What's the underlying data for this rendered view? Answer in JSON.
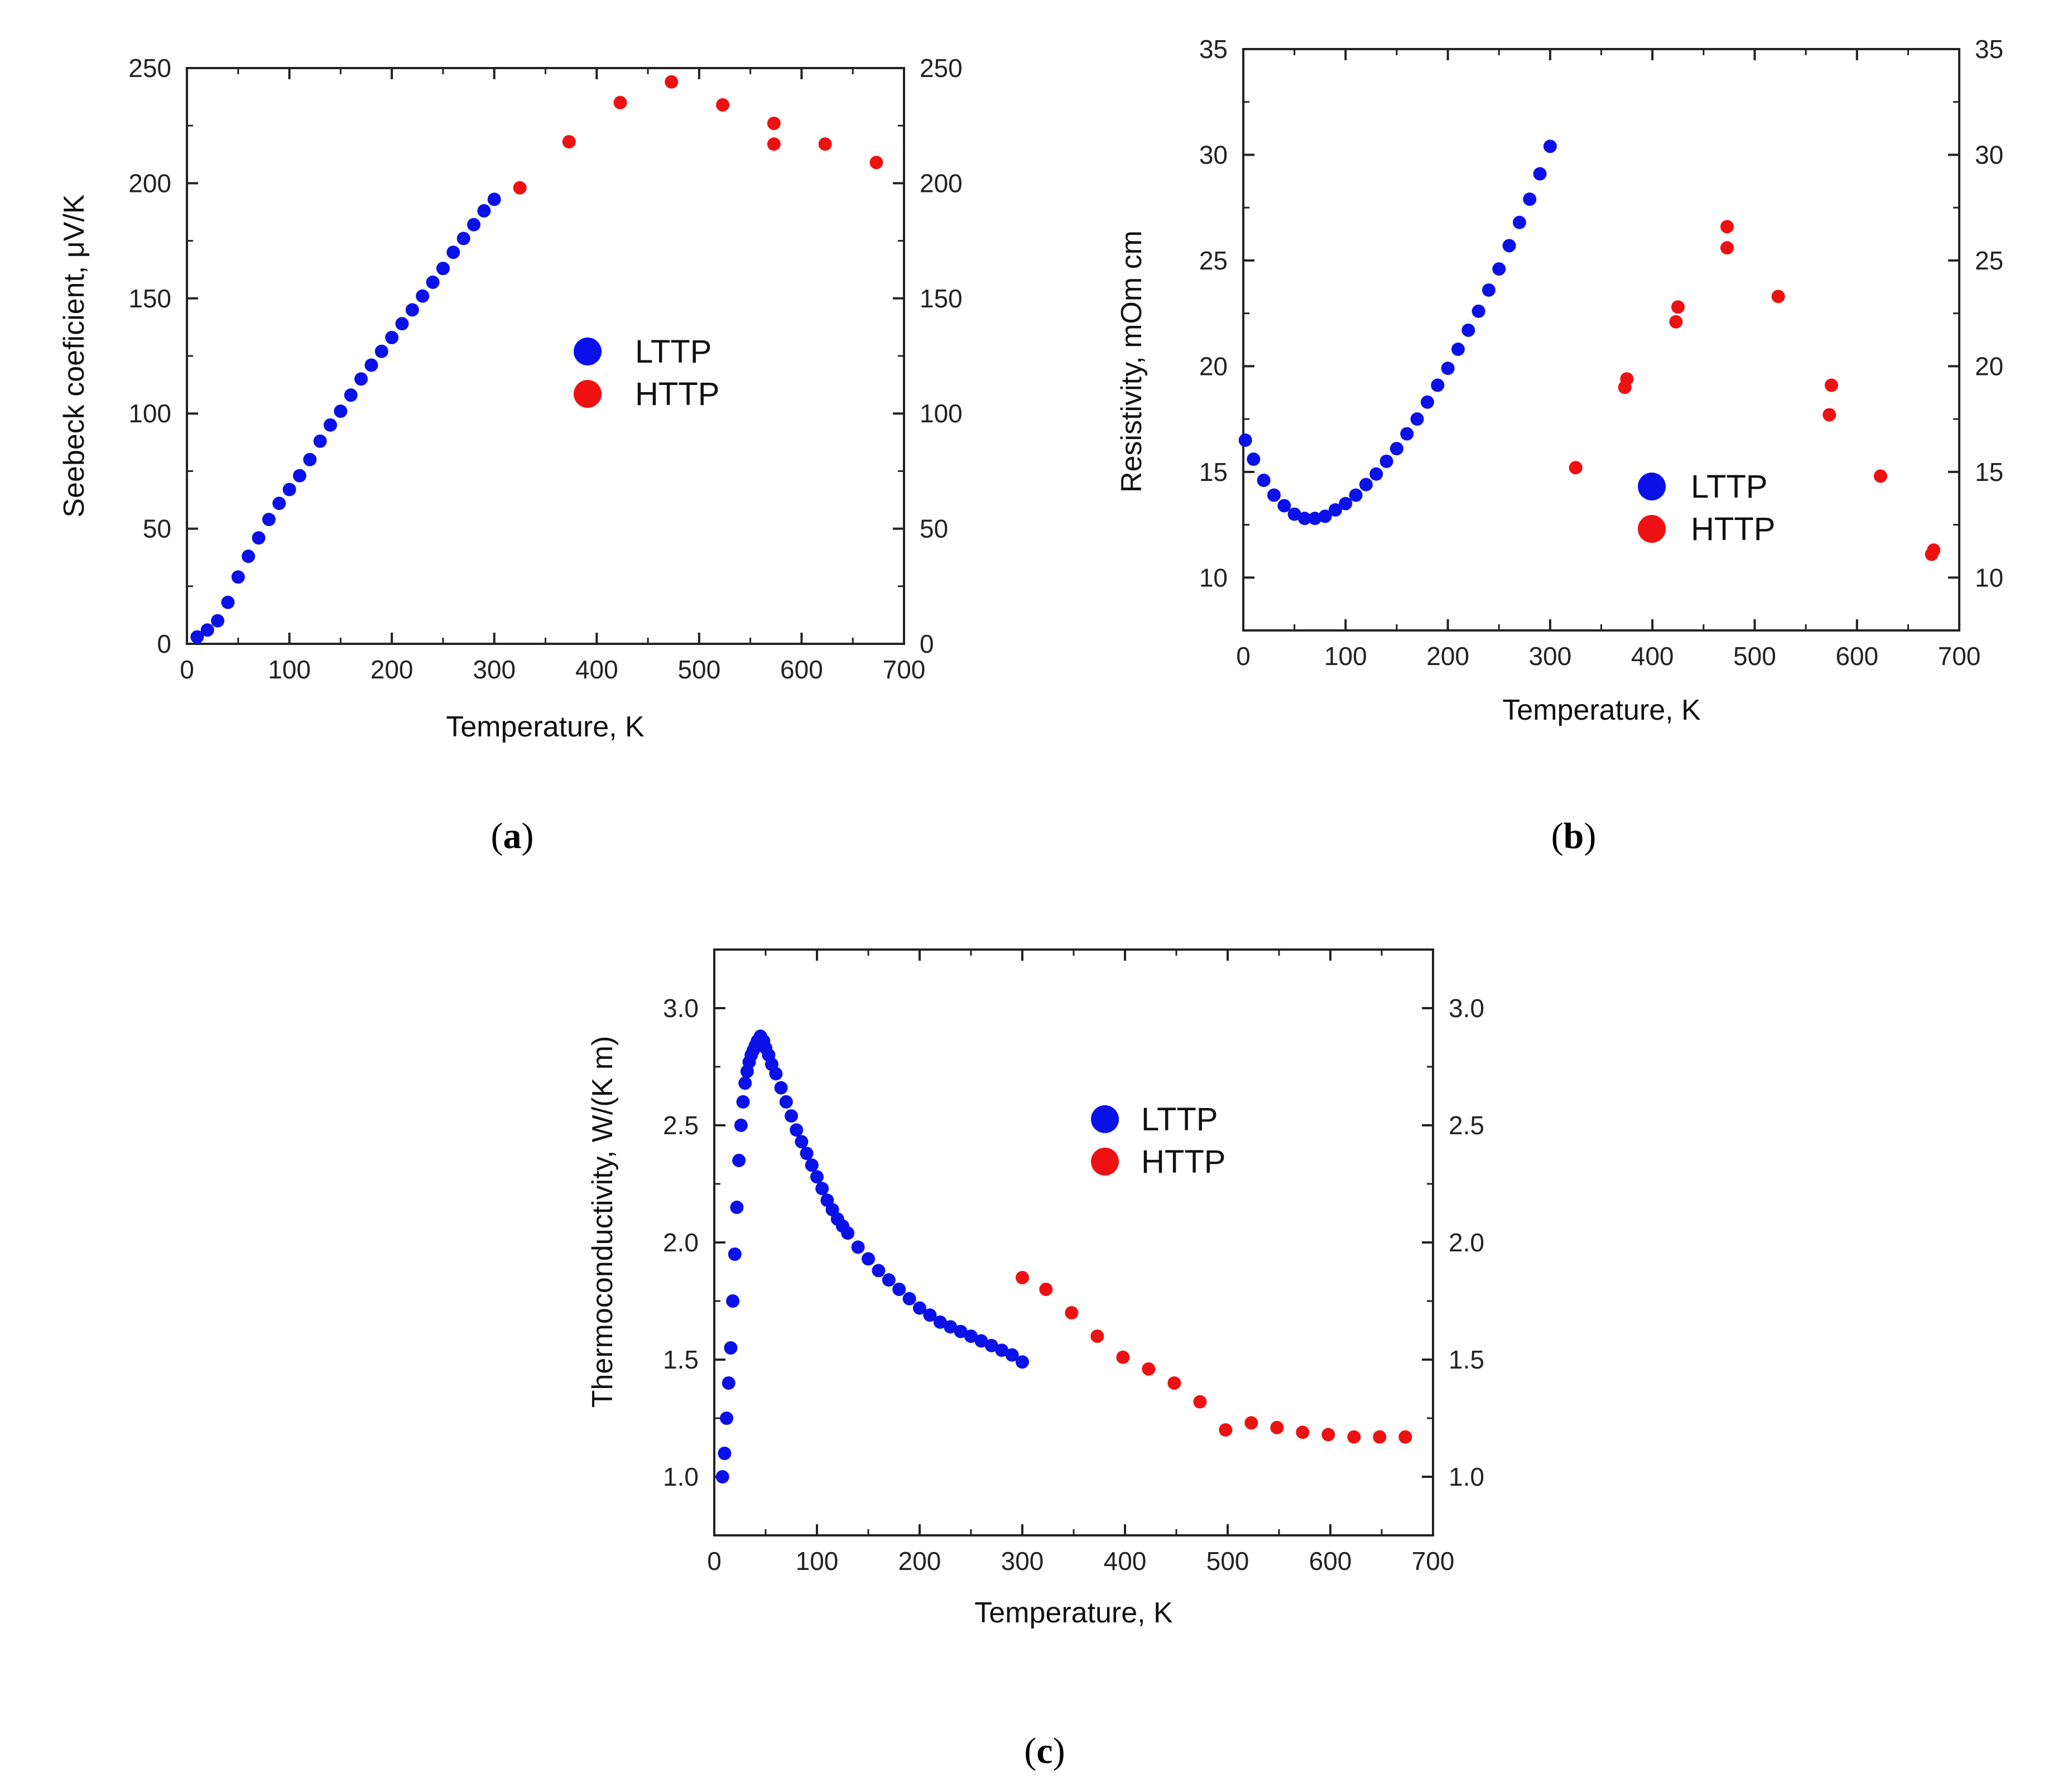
{
  "chart_data": [
    {
      "id": "a",
      "type": "scatter",
      "caption_open": "(",
      "caption_letter": "a",
      "caption_close": ")",
      "xlabel": "Temperature, K",
      "ylabel": "Seebeck coeficient, μV/K",
      "xlim": [
        0,
        700
      ],
      "ylim": [
        0,
        250
      ],
      "xticks": [
        0,
        100,
        200,
        300,
        400,
        500,
        600,
        700
      ],
      "yticks": [
        0,
        50,
        100,
        150,
        200,
        250
      ],
      "right_ticks": true,
      "legend": [
        "LTTP",
        "HTTP"
      ],
      "legend_position": "center",
      "series": [
        {
          "name": "LTTP",
          "color": "#0a10e8",
          "x": [
            10,
            20,
            30,
            40,
            50,
            60,
            70,
            80,
            90,
            100,
            110,
            120,
            130,
            140,
            150,
            160,
            170,
            180,
            190,
            200,
            210,
            220,
            230,
            240,
            250,
            260,
            270,
            280,
            290,
            300
          ],
          "y": [
            3,
            6,
            10,
            18,
            29,
            38,
            46,
            54,
            61,
            67,
            73,
            80,
            88,
            95,
            101,
            108,
            115,
            121,
            127,
            133,
            139,
            145,
            151,
            157,
            163,
            170,
            176,
            182,
            188,
            193
          ]
        },
        {
          "name": "HTTP",
          "color": "#ee1111",
          "x": [
            325,
            373,
            423,
            473,
            523,
            573,
            573,
            623,
            673
          ],
          "y": [
            198,
            218,
            235,
            244,
            234,
            226,
            217,
            217,
            209
          ]
        }
      ]
    },
    {
      "id": "b",
      "type": "scatter",
      "caption_open": "(",
      "caption_letter": "b",
      "caption_close": ")",
      "xlabel": "Temperature, K",
      "ylabel": "Resistivity,  mOm cm",
      "xlim": [
        0,
        700
      ],
      "ylim": [
        7.5,
        35
      ],
      "xticks": [
        0,
        100,
        200,
        300,
        400,
        500,
        600,
        700
      ],
      "yticks": [
        10,
        15,
        20,
        25,
        30,
        35
      ],
      "right_ticks": true,
      "legend": [
        "LTTP",
        "HTTP"
      ],
      "legend_position": "lower-center",
      "series": [
        {
          "name": "LTTP",
          "color": "#0a10e8",
          "x": [
            2,
            10,
            20,
            30,
            40,
            50,
            60,
            70,
            80,
            90,
            100,
            110,
            120,
            130,
            140,
            150,
            160,
            170,
            180,
            190,
            200,
            210,
            220,
            230,
            240,
            250,
            260,
            270,
            280,
            290,
            300
          ],
          "y": [
            16.5,
            15.6,
            14.6,
            13.9,
            13.4,
            13.0,
            12.8,
            12.8,
            12.9,
            13.2,
            13.5,
            13.9,
            14.4,
            14.9,
            15.5,
            16.1,
            16.8,
            17.5,
            18.3,
            19.1,
            19.9,
            20.8,
            21.7,
            22.6,
            23.6,
            24.6,
            25.7,
            26.8,
            27.9,
            29.1,
            30.4
          ]
        },
        {
          "name": "HTTP",
          "color": "#ee1111",
          "x": [
            325,
            373,
            375,
            423,
            425,
            473,
            473,
            523,
            573,
            575,
            623,
            673,
            675
          ],
          "y": [
            15.2,
            19.0,
            19.4,
            22.1,
            22.8,
            25.6,
            26.6,
            23.3,
            17.7,
            19.1,
            14.8,
            11.1,
            11.3
          ]
        }
      ]
    },
    {
      "id": "c",
      "type": "scatter",
      "caption_open": "(",
      "caption_letter": "c",
      "caption_close": ")",
      "xlabel": "Temperature, K",
      "ylabel": "Thermoconductivity, W/(K m)",
      "xlim": [
        0,
        700
      ],
      "ylim": [
        0.75,
        3.25
      ],
      "xticks": [
        0,
        100,
        200,
        300,
        400,
        500,
        600,
        700
      ],
      "yticks": [
        1.0,
        1.5,
        2.0,
        2.5,
        3.0
      ],
      "right_ticks": true,
      "legend": [
        "LTTP",
        "HTTP"
      ],
      "legend_position": "top-right",
      "series": [
        {
          "name": "LTTP",
          "color": "#0a10e8",
          "x": [
            8,
            10,
            12,
            14,
            16,
            18,
            20,
            22,
            24,
            26,
            28,
            30,
            32,
            34,
            36,
            38,
            40,
            42,
            45,
            48,
            50,
            53,
            56,
            60,
            65,
            70,
            75,
            80,
            85,
            90,
            95,
            100,
            105,
            110,
            115,
            120,
            125,
            130,
            140,
            150,
            160,
            170,
            180,
            190,
            200,
            210,
            220,
            230,
            240,
            250,
            260,
            270,
            280,
            290,
            300
          ],
          "y": [
            1.0,
            1.1,
            1.25,
            1.4,
            1.55,
            1.75,
            1.95,
            2.15,
            2.35,
            2.5,
            2.6,
            2.68,
            2.73,
            2.77,
            2.8,
            2.82,
            2.84,
            2.86,
            2.88,
            2.86,
            2.83,
            2.8,
            2.76,
            2.72,
            2.66,
            2.6,
            2.54,
            2.48,
            2.43,
            2.38,
            2.33,
            2.28,
            2.23,
            2.18,
            2.14,
            2.1,
            2.07,
            2.04,
            1.98,
            1.93,
            1.88,
            1.84,
            1.8,
            1.76,
            1.72,
            1.69,
            1.66,
            1.64,
            1.62,
            1.6,
            1.58,
            1.56,
            1.54,
            1.52,
            1.49
          ]
        },
        {
          "name": "HTTP",
          "color": "#ee1111",
          "x": [
            300,
            323,
            348,
            373,
            398,
            423,
            448,
            473,
            498,
            523,
            548,
            573,
            598,
            623,
            648,
            673
          ],
          "y": [
            1.85,
            1.8,
            1.7,
            1.6,
            1.51,
            1.46,
            1.4,
            1.32,
            1.2,
            1.23,
            1.21,
            1.19,
            1.18,
            1.17,
            1.17,
            1.17
          ]
        }
      ]
    }
  ]
}
